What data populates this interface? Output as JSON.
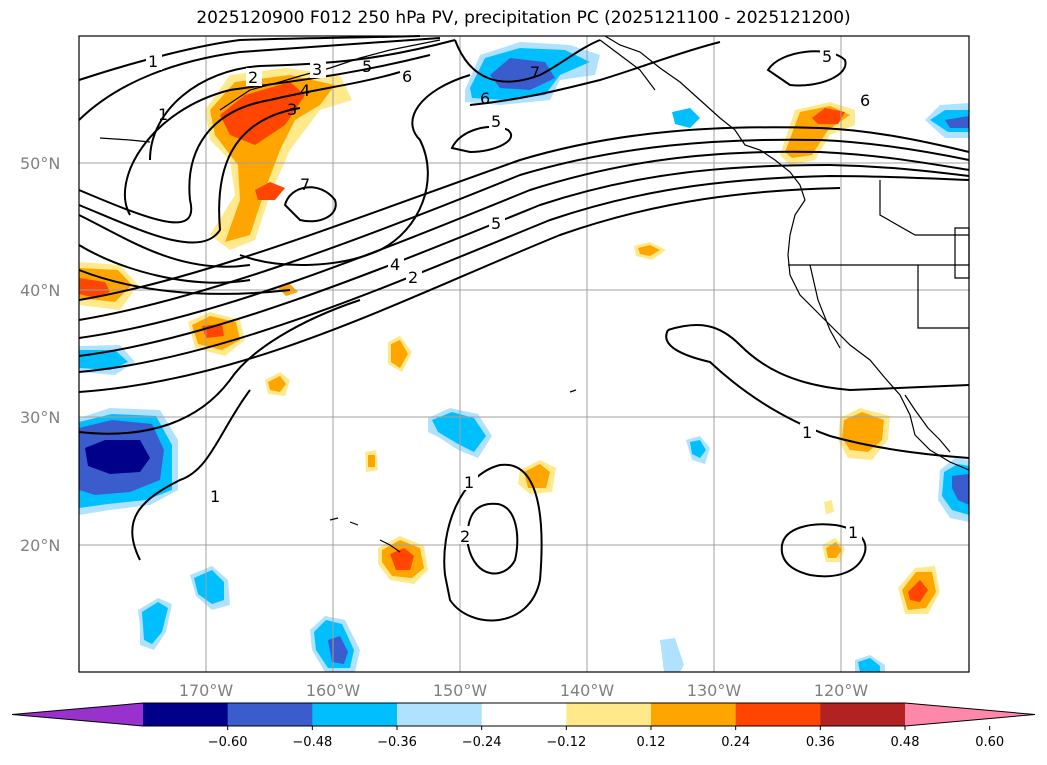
{
  "title": "2025120900 F012 250 hPa PV, precipitation PC (2025121100 - 2025121200)",
  "lat_labels": [
    "50°N",
    "40°N",
    "30°N",
    "20°N"
  ],
  "lon_labels": [
    "170°W",
    "160°W",
    "150°W",
    "140°W",
    "130°W",
    "120°W"
  ],
  "colorbar": {
    "ticks": [
      "−0.60",
      "−0.48",
      "−0.36",
      "−0.24",
      "−0.12",
      "0.12",
      "0.24",
      "0.36",
      "0.48",
      "0.60"
    ],
    "colors": [
      "#9932cc",
      "#00008b",
      "#3a5ccc",
      "#00bfff",
      "#b0e2ff",
      "#ffffff",
      "#ffe98a",
      "#ffa500",
      "#ff4500",
      "#b22222",
      "#ff88aa"
    ]
  },
  "contour_labels": [
    "1",
    "2",
    "3",
    "4",
    "5",
    "6",
    "7",
    "1",
    "3",
    "4",
    "2",
    "5",
    "6",
    "5",
    "7",
    "6",
    "5",
    "1",
    "1",
    "2",
    "1",
    "1"
  ],
  "colors": {
    "contour": "#000000",
    "grid": "#a0a0a0",
    "coast": "#000000"
  }
}
